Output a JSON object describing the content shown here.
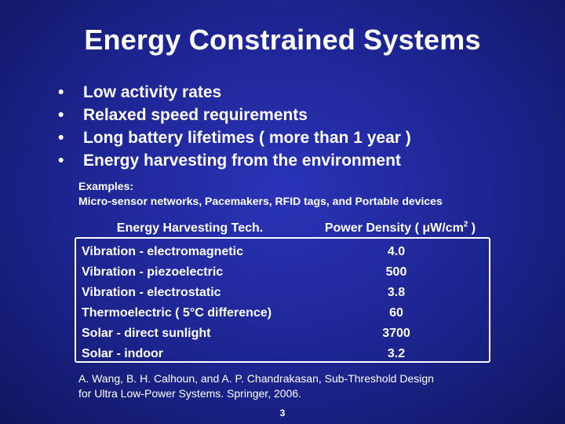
{
  "slide": {
    "title": "Energy Constrained Systems",
    "bullets": [
      "Low activity rates",
      "Relaxed speed requirements",
      "Long battery lifetimes ( more than 1 year )",
      "Energy harvesting from the environment"
    ],
    "bullet_glyph": "•",
    "examples": {
      "heading": "Examples:",
      "text": "Micro-sensor networks, Pacemakers, RFID tags, and Portable devices"
    },
    "table": {
      "headers": {
        "tech": "Energy Harvesting Tech.",
        "power_prefix": "Power Density ( μW/cm",
        "power_sup": "2",
        "power_suffix": " )"
      },
      "rows": [
        {
          "tech": "Vibration - electromagnetic",
          "power": "4.0"
        },
        {
          "tech": "Vibration - piezoelectric",
          "power": "500"
        },
        {
          "tech": "Vibration - electrostatic",
          "power": "3.8"
        },
        {
          "tech": "Thermoelectric ( 5°C difference)",
          "power": "60"
        },
        {
          "tech": "Solar - direct sunlight",
          "power": "3700"
        },
        {
          "tech": "Solar - indoor",
          "power": "3.2"
        }
      ]
    },
    "citation": {
      "line1": "A. Wang, B. H. Calhoun, and A. P. Chandrakasan, Sub-Threshold Design",
      "line2": "for Ultra Low-Power Systems. Springer, 2006."
    },
    "page_number": "3"
  }
}
